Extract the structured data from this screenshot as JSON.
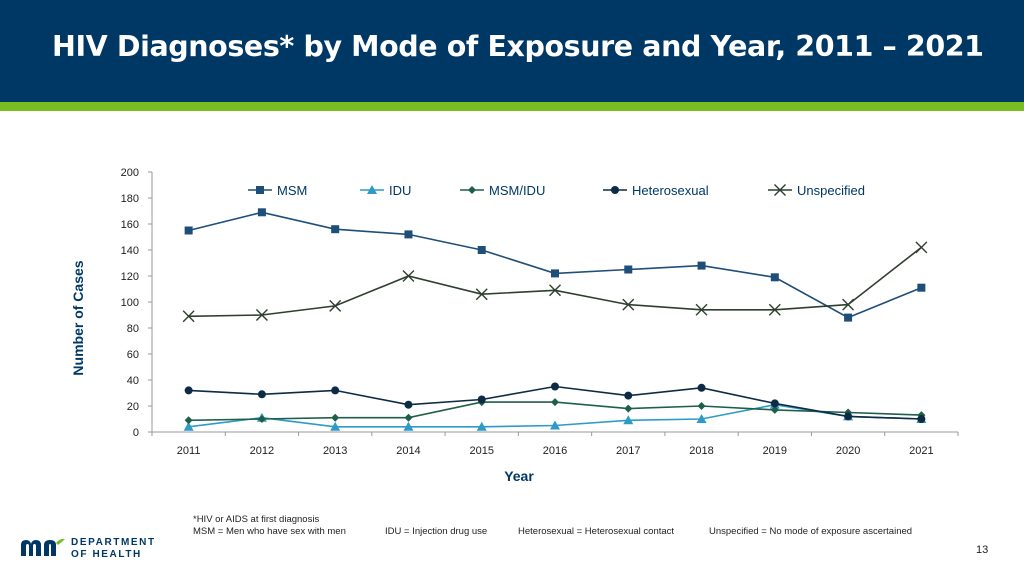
{
  "header": {
    "title": "HIV Diagnoses* by Mode of Exposure and Year, 2011 – 2021"
  },
  "colors": {
    "header_bg": "#003865",
    "accent": "#78be21"
  },
  "chart_data": {
    "type": "line",
    "title": "",
    "xlabel": "Year",
    "ylabel": "Number of Cases",
    "ylim": [
      0,
      200
    ],
    "yticks": [
      0,
      20,
      40,
      60,
      80,
      100,
      120,
      140,
      160,
      180,
      200
    ],
    "legend_position": "top",
    "categories": [
      "2011",
      "2012",
      "2013",
      "2014",
      "2015",
      "2016",
      "2017",
      "2018",
      "2019",
      "2020",
      "2021"
    ],
    "series": [
      {
        "name": "MSM",
        "marker": "square",
        "color": "#1f4e79",
        "values": [
          155,
          169,
          156,
          152,
          140,
          122,
          125,
          128,
          119,
          88,
          111
        ]
      },
      {
        "name": "IDU",
        "marker": "triangle",
        "color": "#2e9bc6",
        "values": [
          4,
          11,
          4,
          4,
          4,
          5,
          9,
          10,
          21,
          12,
          10
        ]
      },
      {
        "name": "MSM/IDU",
        "marker": "diamond",
        "color": "#1f5f4a",
        "values": [
          9,
          10,
          11,
          11,
          23,
          23,
          18,
          20,
          17,
          15,
          13
        ]
      },
      {
        "name": "Heterosexual",
        "marker": "circle",
        "color": "#0d2b45",
        "values": [
          32,
          29,
          32,
          21,
          25,
          35,
          28,
          34,
          22,
          12,
          10
        ]
      },
      {
        "name": "Unspecified",
        "marker": "x",
        "color": "#2f3f2f",
        "values": [
          89,
          90,
          97,
          120,
          106,
          109,
          98,
          94,
          94,
          98,
          142
        ]
      }
    ]
  },
  "footnotes": {
    "asterisk": "*HIV or AIDS at first diagnosis",
    "msm": "MSM = Men who have sex with men",
    "idu": "IDU = Injection drug use",
    "heterosexual": "Heterosexual = Heterosexual contact",
    "unspecified": "Unspecified = No mode of exposure ascertained"
  },
  "logo": {
    "line1": "DEPARTMENT",
    "line2": "OF HEALTH"
  },
  "page_number": "13"
}
